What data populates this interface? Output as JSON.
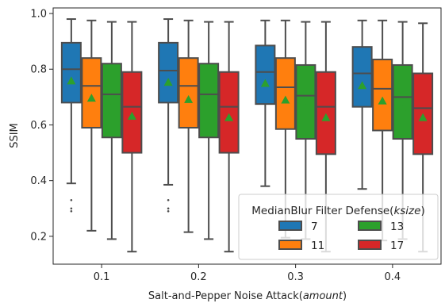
{
  "chart_data": {
    "type": "box",
    "title": "",
    "xlabel": "Salt-and-Pepper Noise Attack(",
    "xlabel_italic": "amount",
    "xlabel_suffix": ")",
    "ylabel": "SSIM",
    "ylim": [
      0.1,
      1.02
    ],
    "yticks": [
      "0.2",
      "0.4",
      "0.6",
      "0.8",
      "1.0"
    ],
    "ytick_values": [
      0.2,
      0.4,
      0.6,
      0.8,
      1.0
    ],
    "categories": [
      "0.1",
      "0.2",
      "0.3",
      "0.4"
    ],
    "grid": false,
    "legend": {
      "title": "MedianBlur Filter Defense(",
      "title_italic": "ksize",
      "title_suffix": ")",
      "placement": "lower-right"
    },
    "series": [
      {
        "name": "7",
        "color": "#1f77b4",
        "boxes": [
          {
            "whislo": 0.39,
            "q1": 0.68,
            "med": 0.8,
            "q3": 0.895,
            "whishi": 0.98,
            "mean": 0.757,
            "fliers": [
              0.33,
              0.3,
              0.29
            ]
          },
          {
            "whislo": 0.385,
            "q1": 0.68,
            "med": 0.795,
            "q3": 0.895,
            "whishi": 0.98,
            "mean": 0.752,
            "fliers": [
              0.33,
              0.3,
              0.29
            ]
          },
          {
            "whislo": 0.38,
            "q1": 0.675,
            "med": 0.79,
            "q3": 0.885,
            "whishi": 0.975,
            "mean": 0.748,
            "fliers": []
          },
          {
            "whislo": 0.37,
            "q1": 0.665,
            "med": 0.785,
            "q3": 0.88,
            "whishi": 0.975,
            "mean": 0.74,
            "fliers": []
          }
        ]
      },
      {
        "name": "11",
        "color": "#ff7f0e",
        "boxes": [
          {
            "whislo": 0.22,
            "q1": 0.59,
            "med": 0.74,
            "q3": 0.84,
            "whishi": 0.975,
            "mean": 0.695,
            "fliers": []
          },
          {
            "whislo": 0.215,
            "q1": 0.59,
            "med": 0.74,
            "q3": 0.84,
            "whishi": 0.975,
            "mean": 0.69,
            "fliers": []
          },
          {
            "whislo": 0.195,
            "q1": 0.585,
            "med": 0.735,
            "q3": 0.84,
            "whishi": 0.975,
            "mean": 0.688,
            "fliers": []
          },
          {
            "whislo": 0.185,
            "q1": 0.58,
            "med": 0.73,
            "q3": 0.835,
            "whishi": 0.975,
            "mean": 0.685,
            "fliers": []
          }
        ]
      },
      {
        "name": "13",
        "color": "#2ca02c",
        "boxes": [
          {
            "whislo": 0.19,
            "q1": 0.555,
            "med": 0.71,
            "q3": 0.82,
            "whishi": 0.97,
            "mean": 0.663,
            "fliers": []
          },
          {
            "whislo": 0.19,
            "q1": 0.555,
            "med": 0.71,
            "q3": 0.82,
            "whishi": 0.97,
            "mean": 0.66,
            "fliers": []
          },
          {
            "whislo": 0.19,
            "q1": 0.55,
            "med": 0.705,
            "q3": 0.815,
            "whishi": 0.97,
            "mean": 0.658,
            "fliers": []
          },
          {
            "whislo": 0.19,
            "q1": 0.55,
            "med": 0.7,
            "q3": 0.815,
            "whishi": 0.97,
            "mean": 0.655,
            "fliers": []
          }
        ]
      },
      {
        "name": "17",
        "color": "#d62728",
        "boxes": [
          {
            "whislo": 0.145,
            "q1": 0.5,
            "med": 0.665,
            "q3": 0.79,
            "whishi": 0.97,
            "mean": 0.63,
            "fliers": []
          },
          {
            "whislo": 0.145,
            "q1": 0.5,
            "med": 0.665,
            "q3": 0.79,
            "whishi": 0.97,
            "mean": 0.625,
            "fliers": []
          },
          {
            "whislo": 0.145,
            "q1": 0.495,
            "med": 0.665,
            "q3": 0.79,
            "whishi": 0.97,
            "mean": 0.625,
            "fliers": []
          },
          {
            "whislo": 0.145,
            "q1": 0.495,
            "med": 0.66,
            "q3": 0.785,
            "whishi": 0.965,
            "mean": 0.625,
            "fliers": []
          }
        ]
      }
    ]
  }
}
